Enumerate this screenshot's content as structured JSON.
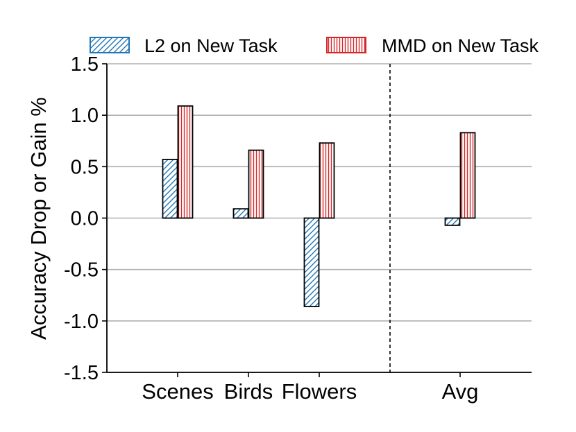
{
  "chart_data": {
    "type": "bar",
    "title": "",
    "xlabel": "",
    "ylabel": "Accuracy Drop or Gain %",
    "ylim": [
      -1.5,
      1.5
    ],
    "yticks": [
      -1.5,
      -1.0,
      -0.5,
      0.0,
      0.5,
      1.0,
      1.5
    ],
    "ytick_labels": [
      "-1.5",
      "-1.0",
      "-0.5",
      "0.0",
      "0.5",
      "1.0",
      "1.5"
    ],
    "grid": "horizontal",
    "legend_position": "top",
    "categories": [
      "Scenes",
      "Birds",
      "Flowers",
      "Avg"
    ],
    "separator_before": "Avg",
    "series": [
      {
        "name": "L2 on New Task",
        "values": [
          0.57,
          0.09,
          -0.86,
          -0.07
        ],
        "color": "#1f77b4",
        "hatch": "diagonal"
      },
      {
        "name": "MMD on New Task",
        "values": [
          1.09,
          0.66,
          0.73,
          0.83
        ],
        "color": "#d62728",
        "hatch": "vertical"
      }
    ]
  }
}
